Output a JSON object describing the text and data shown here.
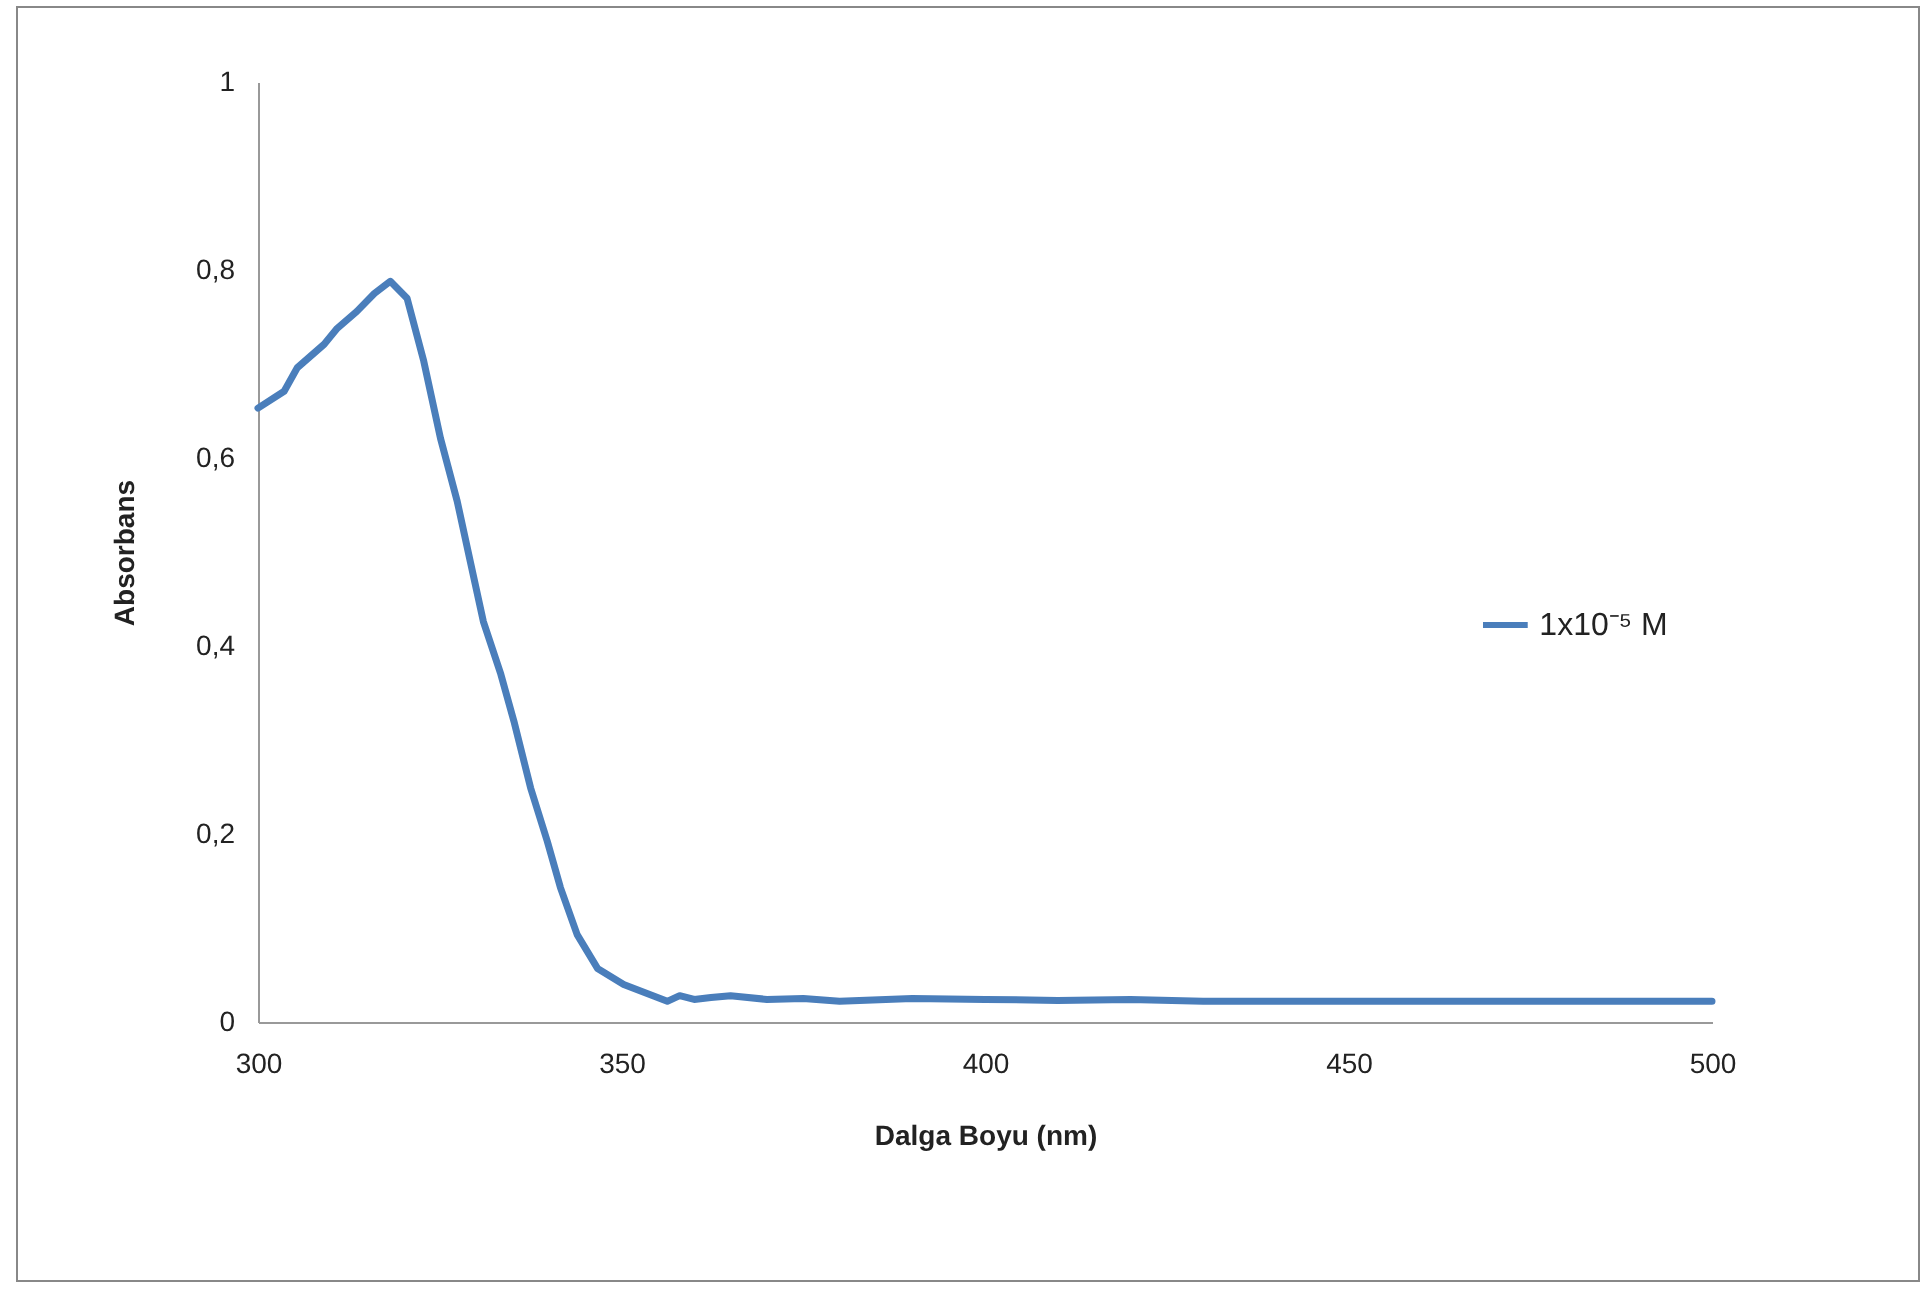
{
  "chart_data": {
    "type": "line",
    "xlabel": "Dalga Boyu (nm)",
    "ylabel": "Absorbans",
    "x": [
      300,
      303.6,
      305.4,
      309.1,
      310.9,
      313.6,
      316,
      318.2,
      320.5,
      322.8,
      325.1,
      327.4,
      329.2,
      331,
      333.4,
      335.2,
      337.5,
      339.8,
      341.6,
      343.9,
      346.7,
      350.3,
      356.3,
      358,
      360,
      362.3,
      365,
      370,
      375,
      380,
      390,
      400,
      410,
      420,
      430,
      440,
      460,
      480,
      500
    ],
    "series": [
      {
        "name": "1x10⁻⁵ M",
        "color": "#4a7ebb",
        "values": [
          0.653,
          0.671,
          0.696,
          0.721,
          0.738,
          0.756,
          0.775,
          0.788,
          0.77,
          0.703,
          0.621,
          0.554,
          0.49,
          0.426,
          0.37,
          0.32,
          0.249,
          0.192,
          0.143,
          0.093,
          0.057,
          0.04,
          0.022,
          0.028,
          0.024,
          0.026,
          0.028,
          0.024,
          0.025,
          0.022,
          0.025,
          0.024,
          0.023,
          0.024,
          0.022,
          0.022,
          0.022,
          0.022,
          0.022
        ]
      }
    ],
    "xlim": [
      300,
      500
    ],
    "ylim": [
      0,
      1
    ],
    "xticks": [
      300,
      350,
      400,
      450,
      500
    ],
    "yticks": [
      0,
      {
        "value": 0.2,
        "label": "0,2"
      },
      {
        "value": 0.4,
        "label": "0,4"
      },
      {
        "value": 0.6,
        "label": "0,6"
      },
      {
        "value": 0.8,
        "label": "0,8"
      },
      1
    ],
    "grid": false,
    "legend": "right"
  }
}
